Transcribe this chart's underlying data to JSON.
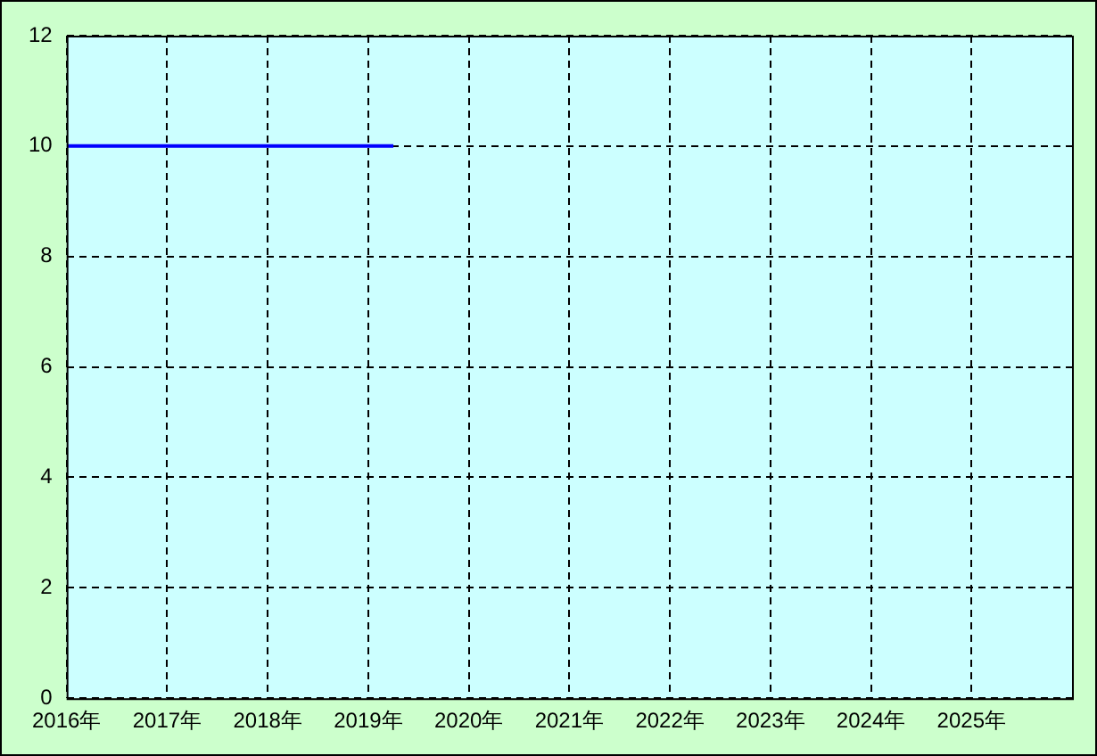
{
  "chart_data": {
    "type": "line",
    "x": [
      "2016-01",
      "2019-04"
    ],
    "series": [
      {
        "color": "#0000ff",
        "values": [
          10,
          10
        ]
      }
    ],
    "xlim": [
      "2016-01",
      "2026-01"
    ],
    "xticks": [
      {
        "value": "2016-01",
        "label": "2016年"
      },
      {
        "value": "2017-01",
        "label": "2017年"
      },
      {
        "value": "2018-01",
        "label": "2018年"
      },
      {
        "value": "2019-01",
        "label": "2019年"
      },
      {
        "value": "2020-01",
        "label": "2020年"
      },
      {
        "value": "2021-01",
        "label": "2021年"
      },
      {
        "value": "2022-01",
        "label": "2022年"
      },
      {
        "value": "2023-01",
        "label": "2023年"
      },
      {
        "value": "2024-01",
        "label": "2024年"
      },
      {
        "value": "2025-01",
        "label": "2025年"
      }
    ],
    "ylim": [
      0,
      12
    ],
    "yticks": [
      0,
      2,
      4,
      6,
      8,
      10,
      12
    ],
    "grid": true,
    "legend": false,
    "marker": "none",
    "line_style": "solid"
  }
}
